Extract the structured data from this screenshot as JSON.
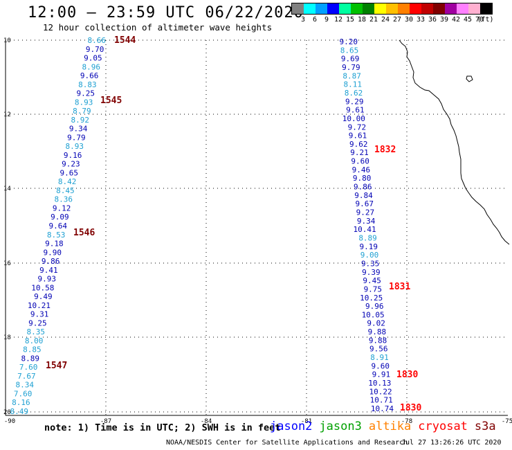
{
  "header": {
    "title": "12:00 – 23:59 UTC 06/22/2020",
    "subtitle": "12 hour collection of altimeter wave heights"
  },
  "scale": {
    "colors": [
      "#808080",
      "#00ffff",
      "#00a0ff",
      "#0000ff",
      "#00ffa0",
      "#00c000",
      "#008000",
      "#ffff00",
      "#ffc000",
      "#ff8000",
      "#ff0000",
      "#c00000",
      "#800000",
      "#a000a0",
      "#ff80ff",
      "#ffb0d0",
      "#000000"
    ],
    "labels": [
      "3",
      "6",
      "9",
      "12",
      "15",
      "18",
      "21",
      "24",
      "27",
      "30",
      "33",
      "36",
      "39",
      "42",
      "45",
      "70",
      "(ft)"
    ]
  },
  "axes": {
    "lon_ticks": [
      "-90",
      "-87",
      "-84",
      "-81",
      "-78",
      "-75"
    ],
    "lat_ticks": [
      "10",
      "12",
      "14",
      "16",
      "18",
      "20"
    ]
  },
  "colors": {
    "dark_blue": "#0000b4",
    "light_blue": "#1ea0d2",
    "maroon": "#800000",
    "red": "#ff0000"
  },
  "track_west": {
    "values": [
      "8.66",
      "9.70",
      "9.05",
      "8.96",
      "9.66",
      "8.83",
      "9.25",
      "8.93",
      "8.79",
      "8.92",
      "9.34",
      "9.79",
      "8.93",
      "9.16",
      "9.23",
      "9.65",
      "8.42",
      "8.45",
      "8.36",
      "9.12",
      "9.09",
      "9.64",
      "8.53",
      "9.18",
      "9.90",
      "9.86",
      "9.41",
      "9.93",
      "10.58",
      "9.49",
      "10.21",
      "9.31",
      "9.25",
      "8.35",
      "8.00",
      "8.85",
      "8.89",
      "7.60",
      "7.67",
      "8.34",
      "7.60",
      "8.16",
      "8.49"
    ],
    "light": [
      true,
      false,
      false,
      true,
      false,
      true,
      false,
      true,
      true,
      true,
      false,
      false,
      true,
      false,
      false,
      false,
      true,
      true,
      true,
      false,
      false,
      false,
      true,
      false,
      false,
      false,
      false,
      false,
      false,
      false,
      false,
      false,
      false,
      true,
      true,
      true,
      false,
      true,
      true,
      true,
      true,
      true,
      true
    ],
    "times": [
      "1544",
      "1545",
      "1546",
      "1547"
    ]
  },
  "track_east": {
    "values": [
      "9.20",
      "8.65",
      "9.69",
      "9.79",
      "8.87",
      "8.11",
      "8.62",
      "9.29",
      "9.61",
      "10.00",
      "9.72",
      "9.61",
      "9.62",
      "9.21",
      "9.60",
      "9.46",
      "9.80",
      "9.86",
      "9.84",
      "9.67",
      "9.27",
      "9.34",
      "10.41",
      "8.89",
      "9.19",
      "9.00",
      "9.35",
      "9.39",
      "9.45",
      "9.75",
      "10.25",
      "9.96",
      "10.05",
      "9.02",
      "9.88",
      "9.88",
      "9.56",
      "8.91",
      "9.60",
      "9.91",
      "10.13",
      "10.22",
      "10.71",
      "10.74"
    ],
    "light": [
      false,
      true,
      false,
      false,
      true,
      true,
      true,
      false,
      false,
      false,
      false,
      false,
      false,
      false,
      false,
      false,
      false,
      false,
      false,
      false,
      false,
      false,
      false,
      true,
      false,
      true,
      false,
      false,
      false,
      false,
      false,
      false,
      false,
      false,
      false,
      false,
      false,
      true,
      false,
      false,
      false,
      false,
      false,
      false
    ],
    "times": [
      "1832",
      "1831",
      "1830",
      "1830"
    ]
  },
  "footer": {
    "note": "note: 1) Time is in UTC; 2) SWH is in feet",
    "satellites": [
      {
        "name": "jason2",
        "color": "#0000ff"
      },
      {
        "name": "jason3",
        "color": "#00a000"
      },
      {
        "name": "altika",
        "color": "#ff8000"
      },
      {
        "name": "cryosat",
        "color": "#ff0000"
      },
      {
        "name": "s3a",
        "color": "#800000"
      }
    ],
    "credit": "NOAA/NESDIS Center for Satellite Applications and Research",
    "timestamp": "Jul 27 13:26:26 UTC 2020"
  }
}
